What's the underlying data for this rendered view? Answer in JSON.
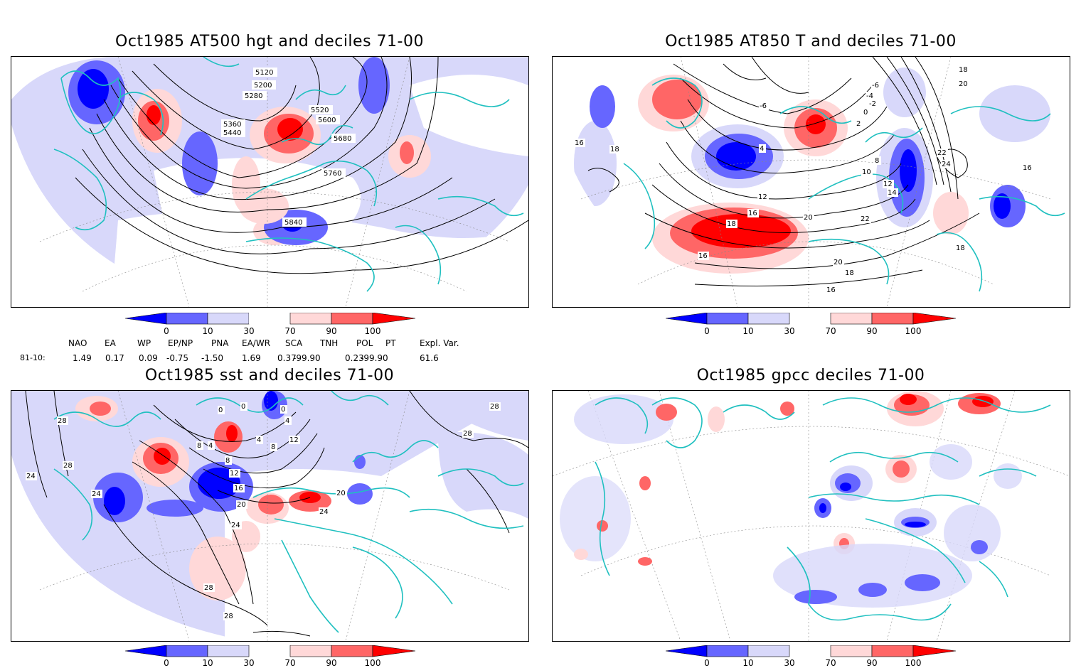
{
  "panels": [
    {
      "id": "p1",
      "title": "Oct1985 AT500 hgt and deciles 71-00",
      "contour_labels": [
        "5120",
        "5200",
        "5280",
        "5360",
        "5440",
        "5520",
        "5600",
        "5680",
        "5760",
        "5840"
      ]
    },
    {
      "id": "p2",
      "title": "Oct1985 AT850 T and deciles 71-00",
      "contour_labels": [
        "-6",
        "-4",
        "-2",
        "0",
        "2",
        "4",
        "6",
        "8",
        "10",
        "12",
        "14",
        "16",
        "18",
        "20",
        "22",
        "24"
      ]
    },
    {
      "id": "p3",
      "title": "Oct1985 sst and deciles 71-00",
      "contour_labels": [
        "0",
        "4",
        "8",
        "12",
        "16",
        "20",
        "24",
        "28"
      ]
    },
    {
      "id": "p4",
      "title": "Oct1985 gpcc deciles 71-00",
      "contour_labels": []
    }
  ],
  "colorbar": {
    "labels": [
      "0",
      "10",
      "30",
      "70",
      "90",
      "100"
    ],
    "colors": [
      "#0000ff",
      "#6666ff",
      "#d8d8fa",
      "#ffffff",
      "#ffd8d8",
      "#ff6666",
      "#ff0000"
    ]
  },
  "index_stats": {
    "row_label": "81-10:",
    "headers": [
      "NAO",
      "EA",
      "WP",
      "EP/NP",
      "PNA",
      "EA/WR",
      "SCA",
      "TNH",
      "POL",
      "PT",
      "Expl. Var."
    ],
    "values": [
      "1.49",
      "0.17",
      "0.09",
      "-0.75",
      "-1.50",
      "1.69",
      "0.37",
      "-99.90",
      "0.23",
      "-99.90",
      "61.6"
    ]
  },
  "colors": {
    "coast": "#20c0c0",
    "contour": "#000000",
    "grid": "#888888"
  }
}
